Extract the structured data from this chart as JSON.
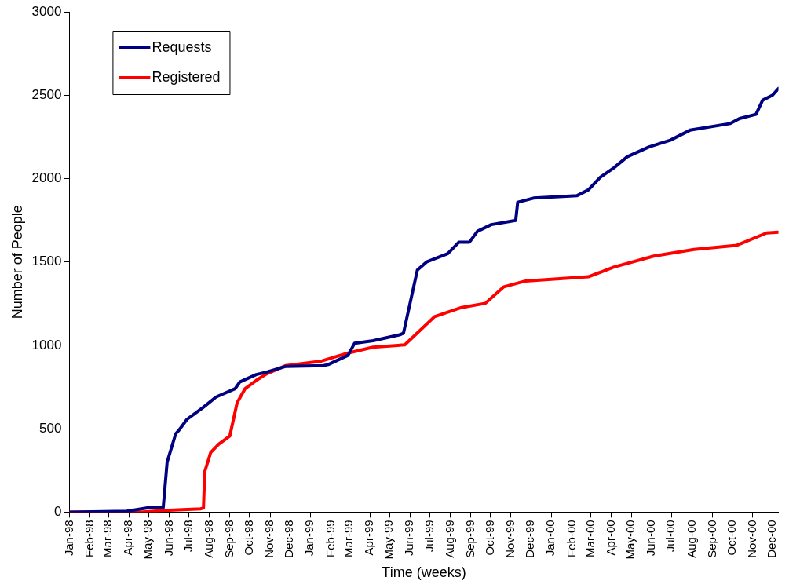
{
  "chart_data": {
    "type": "line",
    "xlabel": "Time (weeks)",
    "ylabel": "Number of People",
    "legend": "top left",
    "grid": false,
    "marker": "none",
    "line_style": "solid",
    "xlim": [
      "1998-01-01",
      "2000-12-10"
    ],
    "ylim": [
      0,
      3000
    ],
    "yticks": [
      0,
      500,
      1000,
      1500,
      2000,
      2500,
      3000
    ],
    "xticks": [
      {
        "value": "1998-01-01",
        "label": "Jan-98"
      },
      {
        "value": "1998-02-01",
        "label": "Feb-98"
      },
      {
        "value": "1998-03-01",
        "label": "Mar-98"
      },
      {
        "value": "1998-04-01",
        "label": "Apr-98"
      },
      {
        "value": "1998-05-01",
        "label": "May-98"
      },
      {
        "value": "1998-06-01",
        "label": "Jun-98"
      },
      {
        "value": "1998-07-01",
        "label": "Jul-98"
      },
      {
        "value": "1998-08-01",
        "label": "Aug-98"
      },
      {
        "value": "1998-09-01",
        "label": "Sep-98"
      },
      {
        "value": "1998-10-01",
        "label": "Oct-98"
      },
      {
        "value": "1998-11-01",
        "label": "Nov-98"
      },
      {
        "value": "1998-12-01",
        "label": "Dec-98"
      },
      {
        "value": "1999-01-01",
        "label": "Jan-99"
      },
      {
        "value": "1999-02-01",
        "label": "Feb-99"
      },
      {
        "value": "1999-03-01",
        "label": "Mar-99"
      },
      {
        "value": "1999-04-01",
        "label": "Apr-99"
      },
      {
        "value": "1999-05-01",
        "label": "May-99"
      },
      {
        "value": "1999-06-01",
        "label": "Jun-99"
      },
      {
        "value": "1999-07-01",
        "label": "Jul-99"
      },
      {
        "value": "1999-08-01",
        "label": "Aug-99"
      },
      {
        "value": "1999-09-01",
        "label": "Sep-99"
      },
      {
        "value": "1999-10-01",
        "label": "Oct-99"
      },
      {
        "value": "1999-11-01",
        "label": "Nov-99"
      },
      {
        "value": "1999-12-01",
        "label": "Dec-99"
      },
      {
        "value": "2000-01-01",
        "label": "Jan-00"
      },
      {
        "value": "2000-02-01",
        "label": "Feb-00"
      },
      {
        "value": "2000-03-01",
        "label": "Mar-00"
      },
      {
        "value": "2000-04-01",
        "label": "Apr-00"
      },
      {
        "value": "2000-05-01",
        "label": "May-00"
      },
      {
        "value": "2000-06-01",
        "label": "Jun-00"
      },
      {
        "value": "2000-07-01",
        "label": "Jul-00"
      },
      {
        "value": "2000-08-01",
        "label": "Aug-00"
      },
      {
        "value": "2000-09-01",
        "label": "Sep-00"
      },
      {
        "value": "2000-10-01",
        "label": "Oct-00"
      },
      {
        "value": "2000-11-01",
        "label": "Nov-00"
      },
      {
        "value": "2000-12-01",
        "label": "Dec-00"
      }
    ],
    "series": [
      {
        "name": "Requests",
        "color": "#000080",
        "x": [
          "1998-01-01",
          "1998-03-29",
          "1998-04-29",
          "1998-05-23",
          "1998-05-29",
          "1998-06-11",
          "1998-06-16",
          "1998-06-28",
          "1998-07-22",
          "1998-08-11",
          "1998-09-09",
          "1998-09-16",
          "1998-10-11",
          "1998-10-27",
          "1998-11-25",
          "1999-01-21",
          "1999-01-28",
          "1999-02-27",
          "1999-03-09",
          "1999-04-06",
          "1999-05-16",
          "1999-05-22",
          "1999-06-12",
          "1999-06-26",
          "1999-07-28",
          "1999-08-14",
          "1999-08-30",
          "1999-09-11",
          "1999-10-02",
          "1999-11-08",
          "1999-11-11",
          "1999-12-05",
          "2000-02-09",
          "2000-02-26",
          "2000-03-15",
          "2000-04-05",
          "2000-04-25",
          "2000-05-28",
          "2000-06-29",
          "2000-07-29",
          "2000-09-28",
          "2000-10-12",
          "2000-11-06",
          "2000-11-16",
          "2000-12-01",
          "2000-12-10"
        ],
        "values": [
          0,
          5,
          25,
          25,
          300,
          470,
          492,
          556,
          626,
          690,
          740,
          780,
          825,
          840,
          874,
          879,
          885,
          940,
          1013,
          1028,
          1063,
          1073,
          1451,
          1500,
          1550,
          1619,
          1619,
          1684,
          1724,
          1749,
          1858,
          1883,
          1898,
          1932,
          2007,
          2065,
          2131,
          2190,
          2230,
          2290,
          2330,
          2360,
          2385,
          2470,
          2500,
          2540
        ]
      },
      {
        "name": "Registered",
        "color": "#ff0000",
        "x": [
          "1998-01-01",
          "1998-04-19",
          "1998-05-25",
          "1998-07-19",
          "1998-07-23",
          "1998-07-25",
          "1998-08-03",
          "1998-08-15",
          "1998-09-01",
          "1998-09-12",
          "1998-09-24",
          "1998-10-11",
          "1998-10-27",
          "1998-11-25",
          "1999-01-16",
          "1999-02-27",
          "1999-04-06",
          "1999-05-24",
          "1999-07-08",
          "1999-08-18",
          "1999-09-23",
          "1999-10-21",
          "1999-11-23",
          "2000-02-26",
          "2000-04-05",
          "2000-06-04",
          "2000-08-04",
          "2000-10-08",
          "2000-11-22",
          "2000-12-10"
        ],
        "values": [
          0,
          0,
          10,
          20,
          25,
          243,
          358,
          407,
          457,
          656,
          740,
          790,
          830,
          879,
          904,
          954,
          989,
          1003,
          1172,
          1227,
          1252,
          1351,
          1386,
          1411,
          1470,
          1535,
          1575,
          1600,
          1674,
          1679
        ]
      }
    ]
  }
}
